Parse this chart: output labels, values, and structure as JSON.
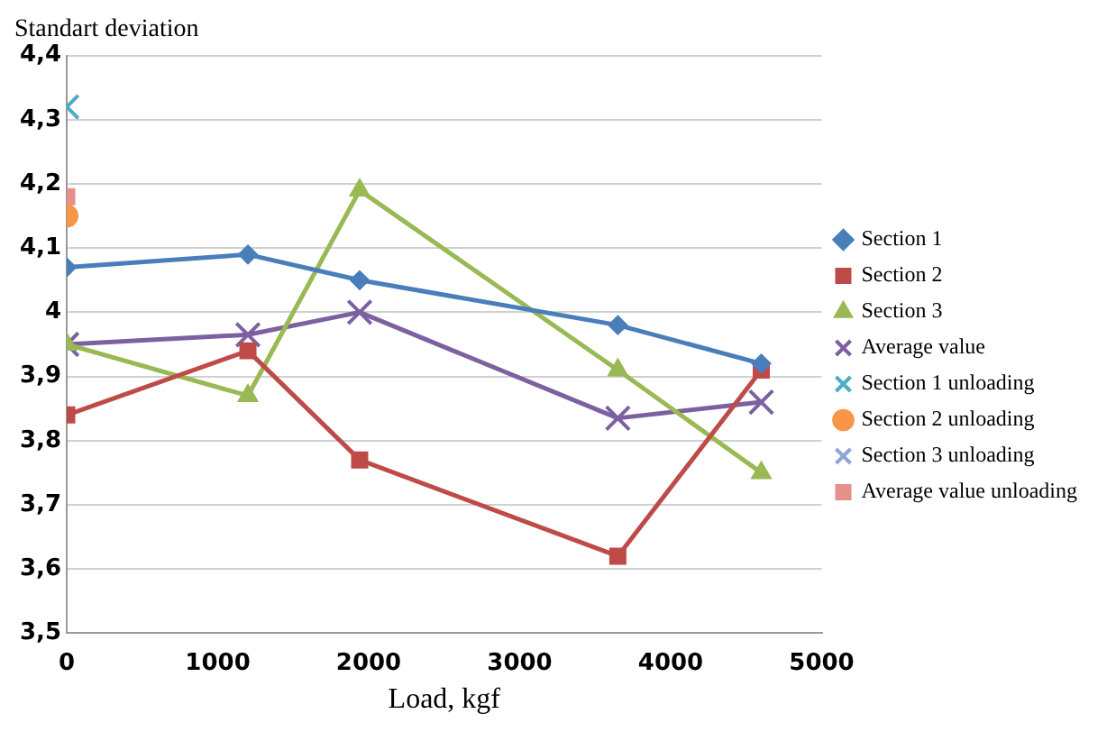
{
  "chart_data": {
    "type": "line",
    "ylabel": "Standart deviation",
    "xlabel": "Load, kgf",
    "x": [
      0,
      1200,
      1940,
      3650,
      4600
    ],
    "series": [
      {
        "name": "Section 1",
        "color": "#4a7ebb",
        "marker": "diamond",
        "values": [
          4.07,
          4.09,
          4.05,
          3.98,
          3.92
        ]
      },
      {
        "name": "Section 2",
        "color": "#be4b48",
        "marker": "square",
        "values": [
          3.84,
          3.94,
          3.77,
          3.62,
          3.91
        ]
      },
      {
        "name": "Section 3",
        "color": "#98b954",
        "marker": "triangle",
        "values": [
          3.95,
          3.87,
          4.19,
          3.91,
          3.75
        ]
      },
      {
        "name": "Average value",
        "color": "#7d60a0",
        "marker": "cross",
        "values": [
          3.95,
          3.965,
          4.0,
          3.835,
          3.86
        ]
      },
      {
        "name": "Section 1 unloading",
        "color": "#4bacc6",
        "marker": "cross",
        "values": [
          4.32,
          null,
          null,
          null,
          null
        ]
      },
      {
        "name": "Section 2 unloading",
        "color": "#f79646",
        "marker": "circle",
        "values": [
          4.15,
          null,
          null,
          null,
          null
        ]
      },
      {
        "name": "Section 3 unloading",
        "color": "#8ea6d6",
        "marker": "cross",
        "values": [
          null,
          null,
          null,
          null,
          null
        ]
      },
      {
        "name": "Average value unloading",
        "color": "#e6908c",
        "marker": "square",
        "values": [
          4.18,
          null,
          null,
          null,
          null
        ]
      }
    ],
    "xlim": [
      0,
      5000
    ],
    "xticks": [
      0,
      1000,
      2000,
      3000,
      4000,
      5000
    ],
    "ylim": [
      3.5,
      4.4
    ],
    "yticks": [
      {
        "value": 3.5,
        "label": "3,5"
      },
      {
        "value": 3.6,
        "label": "3,6"
      },
      {
        "value": 3.7,
        "label": "3,7"
      },
      {
        "value": 3.8,
        "label": "3,8"
      },
      {
        "value": 3.9,
        "label": "3,9"
      },
      {
        "value": 4,
        "label": "4"
      },
      {
        "value": 4.1,
        "label": "4,1"
      },
      {
        "value": 4.2,
        "label": "4,2"
      },
      {
        "value": 4.3,
        "label": "4,3"
      },
      {
        "value": 4.4,
        "label": "4,4"
      }
    ],
    "grid": "y",
    "legend": "right"
  }
}
